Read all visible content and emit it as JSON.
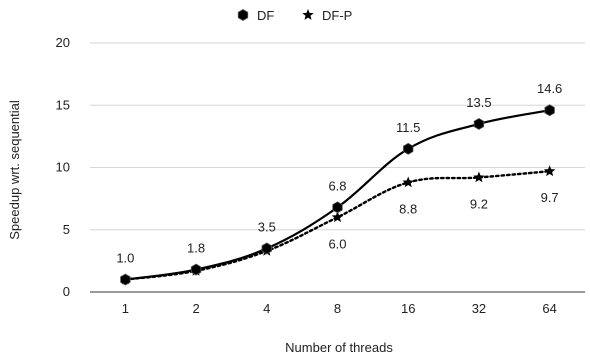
{
  "chart_data": {
    "type": "line",
    "title": "",
    "xlabel": "Number of threads",
    "ylabel": "Speedup wrt. sequential",
    "categories": [
      "1",
      "2",
      "4",
      "8",
      "16",
      "32",
      "64"
    ],
    "ylim": [
      0,
      20
    ],
    "yticks": [
      0,
      5,
      10,
      15,
      20
    ],
    "grid": "horizontal",
    "legend_position": "top-center",
    "series": [
      {
        "name": "DF",
        "values": [
          1.0,
          1.8,
          3.5,
          6.8,
          11.5,
          13.5,
          14.6
        ],
        "labels": [
          "1.0",
          "1.8",
          "3.5",
          "6.8",
          "11.5",
          "13.5",
          "14.6"
        ],
        "color": "#000000",
        "line_style": "solid",
        "marker": "hexagon"
      },
      {
        "name": "DF-P",
        "values": [
          1.0,
          1.7,
          3.3,
          6.0,
          8.8,
          9.2,
          9.7
        ],
        "labels": [
          "",
          "",
          "",
          "6.0",
          "8.8",
          "9.2",
          "9.7"
        ],
        "color": "#000000",
        "line_style": "dotted",
        "marker": "star"
      }
    ]
  }
}
